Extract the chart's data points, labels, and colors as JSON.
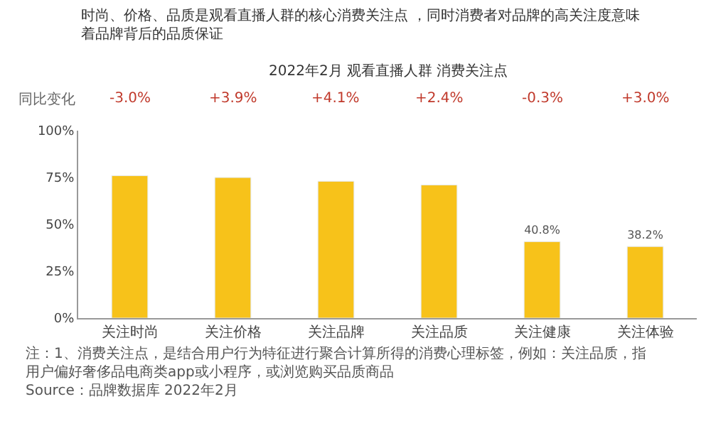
{
  "chart_data": {
    "type": "bar",
    "subtitle": "时尚、价格、品质是观看直播人群的核心消费关注点 ，同时消费者对品牌的高关注度意味着品牌背后的品质保证",
    "title": "2022年2月 观看直播人群 消费关注点",
    "categories": [
      "关注时尚",
      "关注价格",
      "关注品牌",
      "关注品质",
      "关注健康",
      "关注体验"
    ],
    "values": [
      76,
      75,
      73,
      71,
      40.8,
      38.2
    ],
    "value_labels": [
      null,
      null,
      null,
      null,
      "40.8%",
      "38.2%"
    ],
    "color": "#f7c21a",
    "ylim": [
      0,
      100
    ],
    "yticks": [
      {
        "value": 0,
        "label": "0%"
      },
      {
        "value": 25,
        "label": "25%"
      },
      {
        "value": 50,
        "label": "50%"
      },
      {
        "value": 75,
        "label": "75%"
      },
      {
        "value": 100,
        "label": "100%"
      }
    ],
    "annotations": [
      "同比变化",
      "-3.0%",
      "+3.9%",
      "+4.1%",
      "+2.4%",
      "-0.3%",
      "+3.0%",
      "注：1、消费关注点，是结合用户行为特征进行聚合计算所得的消费心理标签，例如：关注品质，指用户偏好奢侈品电商类app或小程序，或浏览购买品质商品",
      "Source：品牌数据库 2022年2月"
    ]
  }
}
